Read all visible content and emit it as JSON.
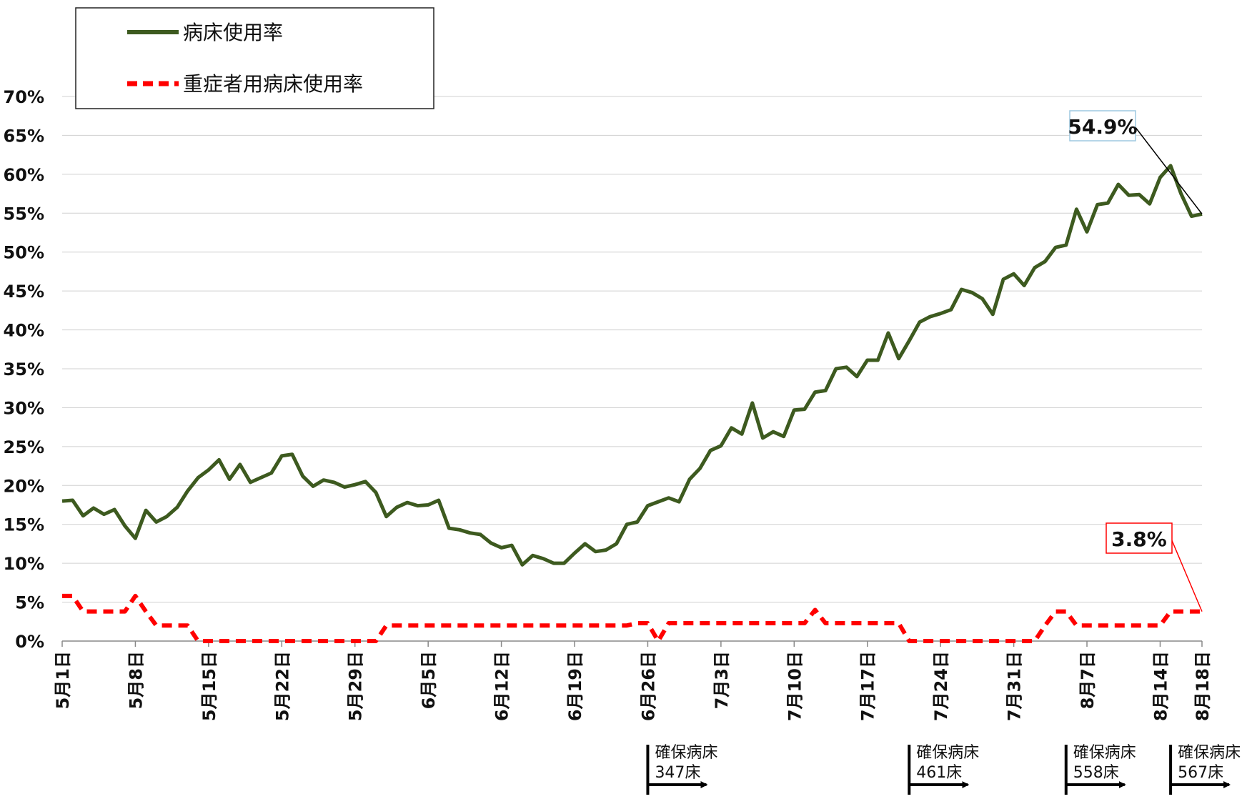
{
  "chart_data": {
    "type": "line",
    "categories": [
      "5月1日",
      null,
      null,
      null,
      null,
      null,
      null,
      "5月8日",
      null,
      null,
      null,
      null,
      null,
      null,
      "5月15日",
      null,
      null,
      null,
      null,
      null,
      null,
      "5月22日",
      null,
      null,
      null,
      null,
      null,
      null,
      "5月29日",
      null,
      null,
      null,
      null,
      null,
      null,
      "6月5日",
      null,
      null,
      null,
      null,
      null,
      null,
      "6月12日",
      null,
      null,
      null,
      null,
      null,
      null,
      "6月19日",
      null,
      null,
      null,
      null,
      null,
      null,
      "6月26日",
      null,
      null,
      null,
      null,
      null,
      null,
      "7月3日",
      null,
      null,
      null,
      null,
      null,
      null,
      "7月10日",
      null,
      null,
      null,
      null,
      null,
      null,
      "7月17日",
      null,
      null,
      null,
      null,
      null,
      null,
      "7月24日",
      null,
      null,
      null,
      null,
      null,
      null,
      "7月31日",
      null,
      null,
      null,
      null,
      null,
      null,
      "8月7日",
      null,
      null,
      null,
      null,
      null,
      null,
      "8月14日",
      null,
      null,
      null,
      "8月18日"
    ],
    "series": [
      {
        "name": "病床使用率",
        "color": "#3d5a1f",
        "dash": false,
        "values": [
          18.0,
          18.1,
          16.1,
          17.1,
          16.3,
          16.9,
          14.8,
          13.2,
          16.8,
          15.3,
          16.0,
          17.2,
          19.3,
          21.0,
          22.0,
          23.3,
          20.8,
          22.7,
          20.4,
          21.0,
          21.6,
          23.8,
          24.0,
          21.2,
          19.9,
          20.7,
          20.4,
          19.8,
          20.1,
          20.5,
          19.1,
          16.0,
          17.2,
          17.8,
          17.4,
          17.5,
          18.1,
          14.5,
          14.3,
          13.9,
          13.7,
          12.6,
          12.0,
          12.3,
          9.8,
          11.0,
          10.6,
          10.0,
          10.0,
          11.3,
          12.5,
          11.5,
          11.7,
          12.5,
          15.0,
          15.3,
          17.4,
          17.9,
          18.4,
          17.9,
          20.8,
          22.2,
          24.5,
          25.1,
          27.4,
          26.6,
          30.6,
          26.1,
          26.9,
          26.3,
          29.7,
          29.8,
          32.0,
          32.2,
          35.0,
          35.2,
          34.0,
          36.1,
          36.1,
          39.6,
          36.3,
          38.6,
          41.0,
          41.7,
          42.1,
          42.6,
          45.2,
          44.8,
          44.0,
          42.0,
          46.5,
          47.2,
          45.7,
          48.0,
          48.8,
          50.6,
          50.9,
          55.5,
          52.6,
          56.1,
          56.3,
          58.7,
          57.3,
          57.4,
          56.2,
          59.6,
          61.1,
          57.5,
          54.6,
          54.9
        ]
      },
      {
        "name": "重症者用病床使用率",
        "color": "#ff0000",
        "dash": true,
        "values": [
          5.8,
          5.8,
          3.8,
          3.8,
          3.8,
          3.8,
          3.8,
          5.8,
          3.8,
          2.0,
          2.0,
          2.0,
          2.0,
          0,
          0,
          0,
          0,
          0,
          0,
          0,
          0,
          0,
          0,
          0,
          0,
          0,
          0,
          0,
          0,
          0,
          0,
          2.0,
          2.0,
          2.0,
          2.0,
          2.0,
          2.0,
          2.0,
          2.0,
          2.0,
          2.0,
          2.0,
          2.0,
          2.0,
          2.0,
          2.0,
          2.0,
          2.0,
          2.0,
          2.0,
          2.0,
          2.0,
          2.0,
          2.0,
          2.0,
          2.3,
          2.3,
          0,
          2.3,
          2.3,
          2.3,
          2.3,
          2.3,
          2.3,
          2.3,
          2.3,
          2.3,
          2.3,
          2.3,
          2.3,
          2.3,
          2.3,
          4.0,
          2.3,
          2.3,
          2.3,
          2.3,
          2.3,
          2.3,
          2.3,
          2.3,
          0,
          0,
          0,
          0,
          0,
          0,
          0,
          0,
          0,
          0,
          0,
          0,
          0,
          2.0,
          3.8,
          3.8,
          2.0,
          2.0,
          2.0,
          2.0,
          2.0,
          2.0,
          2.0,
          2.0,
          2.0,
          3.8,
          3.8,
          3.8,
          3.8
        ]
      }
    ],
    "annotations": [
      "54.9%",
      "3.8%"
    ],
    "ylim": [
      0,
      70
    ],
    "yticks": [
      {
        "value": 0,
        "label": "0%"
      },
      {
        "value": 5,
        "label": "5%"
      },
      {
        "value": 10,
        "label": "10%"
      },
      {
        "value": 15,
        "label": "15%"
      },
      {
        "value": 20,
        "label": "20%"
      },
      {
        "value": 25,
        "label": "25%"
      },
      {
        "value": 30,
        "label": "30%"
      },
      {
        "value": 35,
        "label": "35%"
      },
      {
        "value": 40,
        "label": "40%"
      },
      {
        "value": 45,
        "label": "45%"
      },
      {
        "value": 50,
        "label": "50%"
      },
      {
        "value": 55,
        "label": "55%"
      },
      {
        "value": 60,
        "label": "60%"
      },
      {
        "value": 65,
        "label": "65%"
      },
      {
        "value": 70,
        "label": "70%"
      }
    ],
    "grid": true,
    "legend": "top-left",
    "bed_notes": [
      {
        "x": 56,
        "label": "確保病床",
        "beds": "347床"
      },
      {
        "x": 81,
        "label": "確保病床",
        "beds": "461床"
      },
      {
        "x": 96,
        "label": "確保病床",
        "beds": "558床"
      },
      {
        "x": 106,
        "label": "確保病床",
        "beds": "567床"
      }
    ]
  }
}
